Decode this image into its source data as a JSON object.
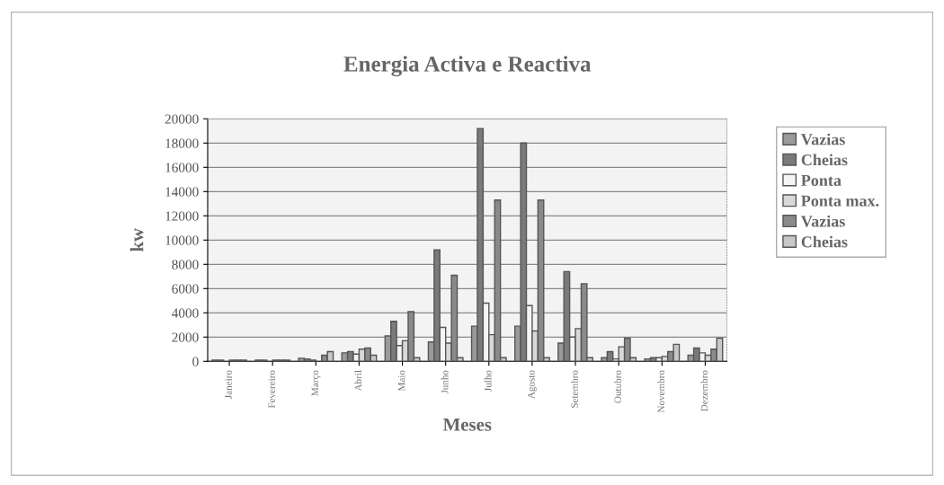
{
  "chart_data": {
    "type": "bar",
    "title": "Energia Activa e Reactiva",
    "xlabel": "Meses",
    "ylabel": "kw",
    "categories": [
      "Janeiro",
      "Fevereiro",
      "Março",
      "Abril",
      "Maio",
      "Junho",
      "Julho",
      "Agosto",
      "Setembro",
      "Outubro",
      "Novembro",
      "Dezembro"
    ],
    "series": [
      {
        "name": "Vazias",
        "color": "#9a9a9a",
        "values": [
          100,
          100,
          250,
          700,
          2100,
          1600,
          2900,
          2900,
          1500,
          300,
          200,
          500
        ]
      },
      {
        "name": "Cheias",
        "color": "#7a7a7a",
        "values": [
          100,
          100,
          200,
          800,
          3300,
          9200,
          19200,
          18000,
          7400,
          800,
          300,
          1100
        ]
      },
      {
        "name": "Ponta",
        "color": "#f4f4f4",
        "values": [
          null,
          null,
          100,
          600,
          1300,
          2800,
          4800,
          4600,
          2000,
          200,
          300,
          700
        ]
      },
      {
        "name": "Ponta max.",
        "color": "#d8d8d8",
        "values": [
          100,
          100,
          null,
          1000,
          1700,
          1500,
          2200,
          2500,
          2700,
          1200,
          400,
          500
        ]
      },
      {
        "name": "Vazias",
        "color": "#8a8a8a",
        "values": [
          100,
          100,
          500,
          1100,
          4100,
          7100,
          13300,
          13300,
          6400,
          1900,
          800,
          1000
        ]
      },
      {
        "name": "Cheias",
        "color": "#c8c8c8",
        "values": [
          100,
          100,
          800,
          500,
          300,
          300,
          300,
          300,
          300,
          300,
          1400,
          1900
        ]
      }
    ],
    "ylim": [
      0,
      20000
    ],
    "yticks": [
      0,
      2000,
      4000,
      6000,
      8000,
      10000,
      12000,
      14000,
      16000,
      18000,
      20000
    ],
    "grid": "y",
    "legend": "right"
  }
}
